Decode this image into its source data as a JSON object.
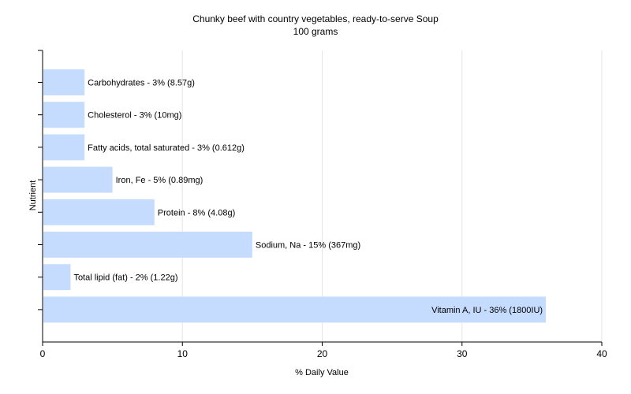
{
  "chart_data": {
    "type": "bar",
    "orientation": "horizontal",
    "title": "Chunky beef with country vegetables, ready-to-serve Soup",
    "subtitle": "100 grams",
    "xlabel": "% Daily Value",
    "ylabel": "Nutrient",
    "xlim": [
      0,
      40
    ],
    "xticks": [
      "0",
      "10",
      "20",
      "30",
      "40"
    ],
    "grid": "vertical",
    "legend": "none",
    "bar_color": "#c6dcff",
    "categories": [
      "Carbohydrates",
      "Cholesterol",
      "Fatty acids, total saturated",
      "Iron, Fe",
      "Protein",
      "Sodium, Na",
      "Total lipid (fat)",
      "Vitamin A, IU"
    ],
    "values": [
      3,
      3,
      3,
      5,
      8,
      15,
      2,
      36
    ],
    "labels": [
      "Carbohydrates - 3% (8.57g)",
      "Cholesterol - 3% (10mg)",
      "Fatty acids, total saturated - 3% (0.612g)",
      "Iron, Fe - 5% (0.89mg)",
      "Protein - 8% (4.08g)",
      "Sodium, Na - 15% (367mg)",
      "Total lipid (fat) - 2% (1.22g)",
      "Vitamin A, IU - 36% (1800IU)"
    ]
  }
}
